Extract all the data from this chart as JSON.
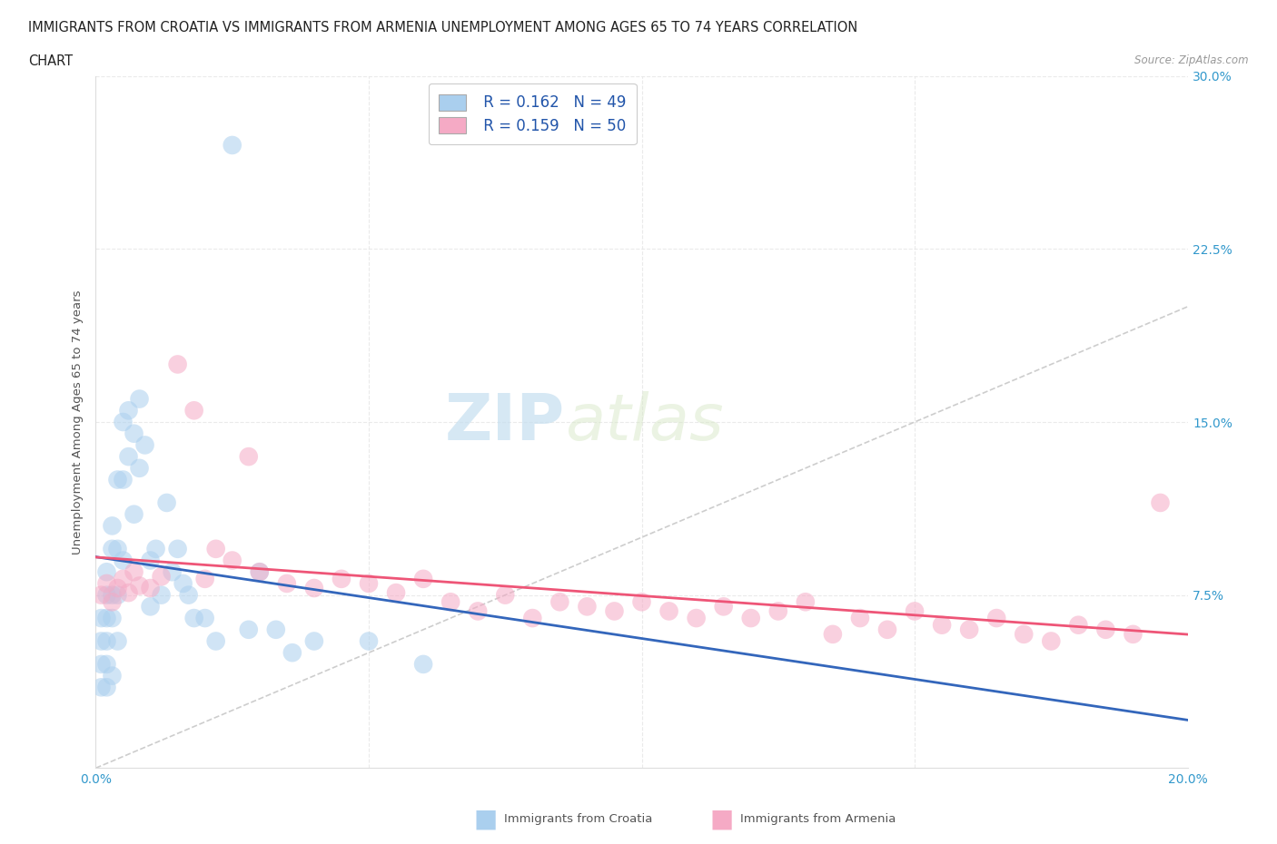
{
  "title_line1": "IMMIGRANTS FROM CROATIA VS IMMIGRANTS FROM ARMENIA UNEMPLOYMENT AMONG AGES 65 TO 74 YEARS CORRELATION",
  "title_line2": "CHART",
  "source_text": "Source: ZipAtlas.com",
  "ylabel": "Unemployment Among Ages 65 to 74 years",
  "xlim": [
    0.0,
    0.2
  ],
  "ylim": [
    0.0,
    0.3
  ],
  "xticks": [
    0.0,
    0.05,
    0.1,
    0.15,
    0.2
  ],
  "xticklabels": [
    "0.0%",
    "",
    "",
    "",
    "20.0%"
  ],
  "yticks": [
    0.0,
    0.075,
    0.15,
    0.225,
    0.3
  ],
  "yticklabels": [
    "",
    "7.5%",
    "15.0%",
    "22.5%",
    "30.0%"
  ],
  "croatia_color": "#aacfee",
  "armenia_color": "#f5aac5",
  "croatia_R": 0.162,
  "croatia_N": 49,
  "armenia_R": 0.159,
  "armenia_N": 50,
  "watermark_zip": "ZIP",
  "watermark_atlas": "atlas",
  "background_color": "#ffffff",
  "grid_color": "#e8e8e8",
  "grid_style": "--",
  "trend_diagonal_color": "#c8c8c8",
  "croatia_trend_color": "#3366bb",
  "armenia_trend_color": "#ee5577",
  "croatia_x": [
    0.001,
    0.001,
    0.001,
    0.001,
    0.002,
    0.002,
    0.002,
    0.002,
    0.002,
    0.002,
    0.003,
    0.003,
    0.003,
    0.003,
    0.003,
    0.004,
    0.004,
    0.004,
    0.004,
    0.005,
    0.005,
    0.005,
    0.006,
    0.006,
    0.007,
    0.007,
    0.008,
    0.008,
    0.009,
    0.01,
    0.01,
    0.011,
    0.012,
    0.013,
    0.014,
    0.015,
    0.016,
    0.017,
    0.018,
    0.02,
    0.022,
    0.025,
    0.028,
    0.03,
    0.033,
    0.036,
    0.04,
    0.05,
    0.06
  ],
  "croatia_y": [
    0.065,
    0.055,
    0.045,
    0.035,
    0.085,
    0.075,
    0.065,
    0.055,
    0.045,
    0.035,
    0.105,
    0.095,
    0.075,
    0.065,
    0.04,
    0.125,
    0.095,
    0.075,
    0.055,
    0.15,
    0.125,
    0.09,
    0.155,
    0.135,
    0.145,
    0.11,
    0.16,
    0.13,
    0.14,
    0.09,
    0.07,
    0.095,
    0.075,
    0.115,
    0.085,
    0.095,
    0.08,
    0.075,
    0.065,
    0.065,
    0.055,
    0.27,
    0.06,
    0.085,
    0.06,
    0.05,
    0.055,
    0.055,
    0.045
  ],
  "armenia_x": [
    0.001,
    0.002,
    0.003,
    0.004,
    0.005,
    0.006,
    0.007,
    0.008,
    0.01,
    0.012,
    0.015,
    0.018,
    0.02,
    0.022,
    0.025,
    0.028,
    0.03,
    0.035,
    0.04,
    0.045,
    0.05,
    0.055,
    0.06,
    0.065,
    0.07,
    0.075,
    0.08,
    0.085,
    0.09,
    0.095,
    0.1,
    0.105,
    0.11,
    0.115,
    0.12,
    0.125,
    0.13,
    0.135,
    0.14,
    0.145,
    0.15,
    0.155,
    0.16,
    0.165,
    0.17,
    0.175,
    0.18,
    0.185,
    0.19,
    0.195
  ],
  "armenia_y": [
    0.075,
    0.08,
    0.072,
    0.078,
    0.082,
    0.076,
    0.085,
    0.079,
    0.078,
    0.083,
    0.175,
    0.155,
    0.082,
    0.095,
    0.09,
    0.135,
    0.085,
    0.08,
    0.078,
    0.082,
    0.08,
    0.076,
    0.082,
    0.072,
    0.068,
    0.075,
    0.065,
    0.072,
    0.07,
    0.068,
    0.072,
    0.068,
    0.065,
    0.07,
    0.065,
    0.068,
    0.072,
    0.058,
    0.065,
    0.06,
    0.068,
    0.062,
    0.06,
    0.065,
    0.058,
    0.055,
    0.062,
    0.06,
    0.058,
    0.115
  ]
}
